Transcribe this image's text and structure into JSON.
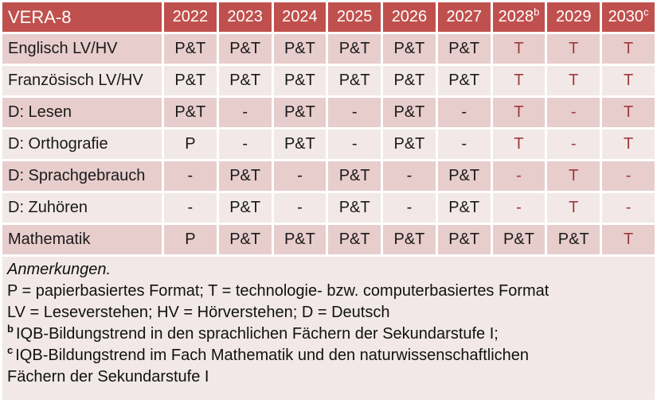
{
  "header": {
    "title": "VERA-8",
    "years": [
      {
        "label": "2022",
        "sup": ""
      },
      {
        "label": "2023",
        "sup": ""
      },
      {
        "label": "2024",
        "sup": ""
      },
      {
        "label": "2025",
        "sup": ""
      },
      {
        "label": "2026",
        "sup": ""
      },
      {
        "label": "2027",
        "sup": ""
      },
      {
        "label": "2028",
        "sup": "b"
      },
      {
        "label": "2029",
        "sup": ""
      },
      {
        "label": "2030",
        "sup": "c"
      }
    ]
  },
  "rows": [
    {
      "label": "Englisch LV/HV",
      "cells": [
        {
          "text": "P&T",
          "highlight": false
        },
        {
          "text": "P&T",
          "highlight": false
        },
        {
          "text": "P&T",
          "highlight": false
        },
        {
          "text": "P&T",
          "highlight": false
        },
        {
          "text": "P&T",
          "highlight": false
        },
        {
          "text": "P&T",
          "highlight": false
        },
        {
          "text": "T",
          "highlight": true
        },
        {
          "text": "T",
          "highlight": true
        },
        {
          "text": "T",
          "highlight": true
        }
      ]
    },
    {
      "label": "Französisch LV/HV",
      "cells": [
        {
          "text": "P&T",
          "highlight": false
        },
        {
          "text": "P&T",
          "highlight": false
        },
        {
          "text": "P&T",
          "highlight": false
        },
        {
          "text": "P&T",
          "highlight": false
        },
        {
          "text": "P&T",
          "highlight": false
        },
        {
          "text": "P&T",
          "highlight": false
        },
        {
          "text": "T",
          "highlight": true
        },
        {
          "text": "T",
          "highlight": true
        },
        {
          "text": "T",
          "highlight": true
        }
      ]
    },
    {
      "label": "D: Lesen",
      "cells": [
        {
          "text": "P&T",
          "highlight": false
        },
        {
          "text": "-",
          "highlight": false
        },
        {
          "text": "P&T",
          "highlight": false
        },
        {
          "text": "-",
          "highlight": false
        },
        {
          "text": "P&T",
          "highlight": false
        },
        {
          "text": "-",
          "highlight": false
        },
        {
          "text": "T",
          "highlight": true
        },
        {
          "text": "-",
          "highlight": true
        },
        {
          "text": "T",
          "highlight": true
        }
      ]
    },
    {
      "label": "D: Orthografie",
      "cells": [
        {
          "text": "P",
          "highlight": false
        },
        {
          "text": "-",
          "highlight": false
        },
        {
          "text": "P&T",
          "highlight": false
        },
        {
          "text": "-",
          "highlight": false
        },
        {
          "text": "P&T",
          "highlight": false
        },
        {
          "text": "-",
          "highlight": false
        },
        {
          "text": "T",
          "highlight": true
        },
        {
          "text": "-",
          "highlight": true
        },
        {
          "text": "T",
          "highlight": true
        }
      ]
    },
    {
      "label": "D: Sprachgebrauch",
      "cells": [
        {
          "text": "-",
          "highlight": false
        },
        {
          "text": "P&T",
          "highlight": false
        },
        {
          "text": "-",
          "highlight": false
        },
        {
          "text": "P&T",
          "highlight": false
        },
        {
          "text": "-",
          "highlight": false
        },
        {
          "text": "P&T",
          "highlight": false
        },
        {
          "text": "-",
          "highlight": true
        },
        {
          "text": "T",
          "highlight": true
        },
        {
          "text": "-",
          "highlight": true
        }
      ]
    },
    {
      "label": "D: Zuhören",
      "cells": [
        {
          "text": "-",
          "highlight": false
        },
        {
          "text": "P&T",
          "highlight": false
        },
        {
          "text": "-",
          "highlight": false
        },
        {
          "text": "P&T",
          "highlight": false
        },
        {
          "text": "-",
          "highlight": false
        },
        {
          "text": "P&T",
          "highlight": false
        },
        {
          "text": "-",
          "highlight": true
        },
        {
          "text": "T",
          "highlight": true
        },
        {
          "text": "-",
          "highlight": true
        }
      ]
    },
    {
      "label": "Mathematik",
      "cells": [
        {
          "text": "P",
          "highlight": false
        },
        {
          "text": "P&T",
          "highlight": false
        },
        {
          "text": "P&T",
          "highlight": false
        },
        {
          "text": "P&T",
          "highlight": false
        },
        {
          "text": "P&T",
          "highlight": false
        },
        {
          "text": "P&T",
          "highlight": false
        },
        {
          "text": "P&T",
          "highlight": false
        },
        {
          "text": "P&T",
          "highlight": false
        },
        {
          "text": "T",
          "highlight": true
        }
      ]
    }
  ],
  "notes": {
    "heading": "Anmerkungen.",
    "lines": [
      {
        "sup": "",
        "text": "P = papierbasiertes Format; T = technologie- bzw. computerbasiertes Format"
      },
      {
        "sup": "",
        "text": "LV = Leseverstehen; HV = Hörverstehen; D = Deutsch"
      },
      {
        "sup": "b",
        "text": "IQB-Bildungstrend in den sprachlichen Fächern der Sekundarstufe I;"
      },
      {
        "sup": "c",
        "text": "IQB-Bildungstrend im Fach Mathematik und den naturwissenschaftlichen"
      },
      {
        "sup": "",
        "text": "Fächern der Sekundarstufe I"
      }
    ]
  },
  "colors": {
    "header_bg": "#C0504D",
    "header_text": "#FFFFFF",
    "band_dark": "#E7CDCC",
    "band_light": "#F2E8E7",
    "notes_bg": "#F1E8E7",
    "highlight_text": "#9E3A38",
    "body_text": "#1A1A1A",
    "grid": "#FFFFFF"
  }
}
